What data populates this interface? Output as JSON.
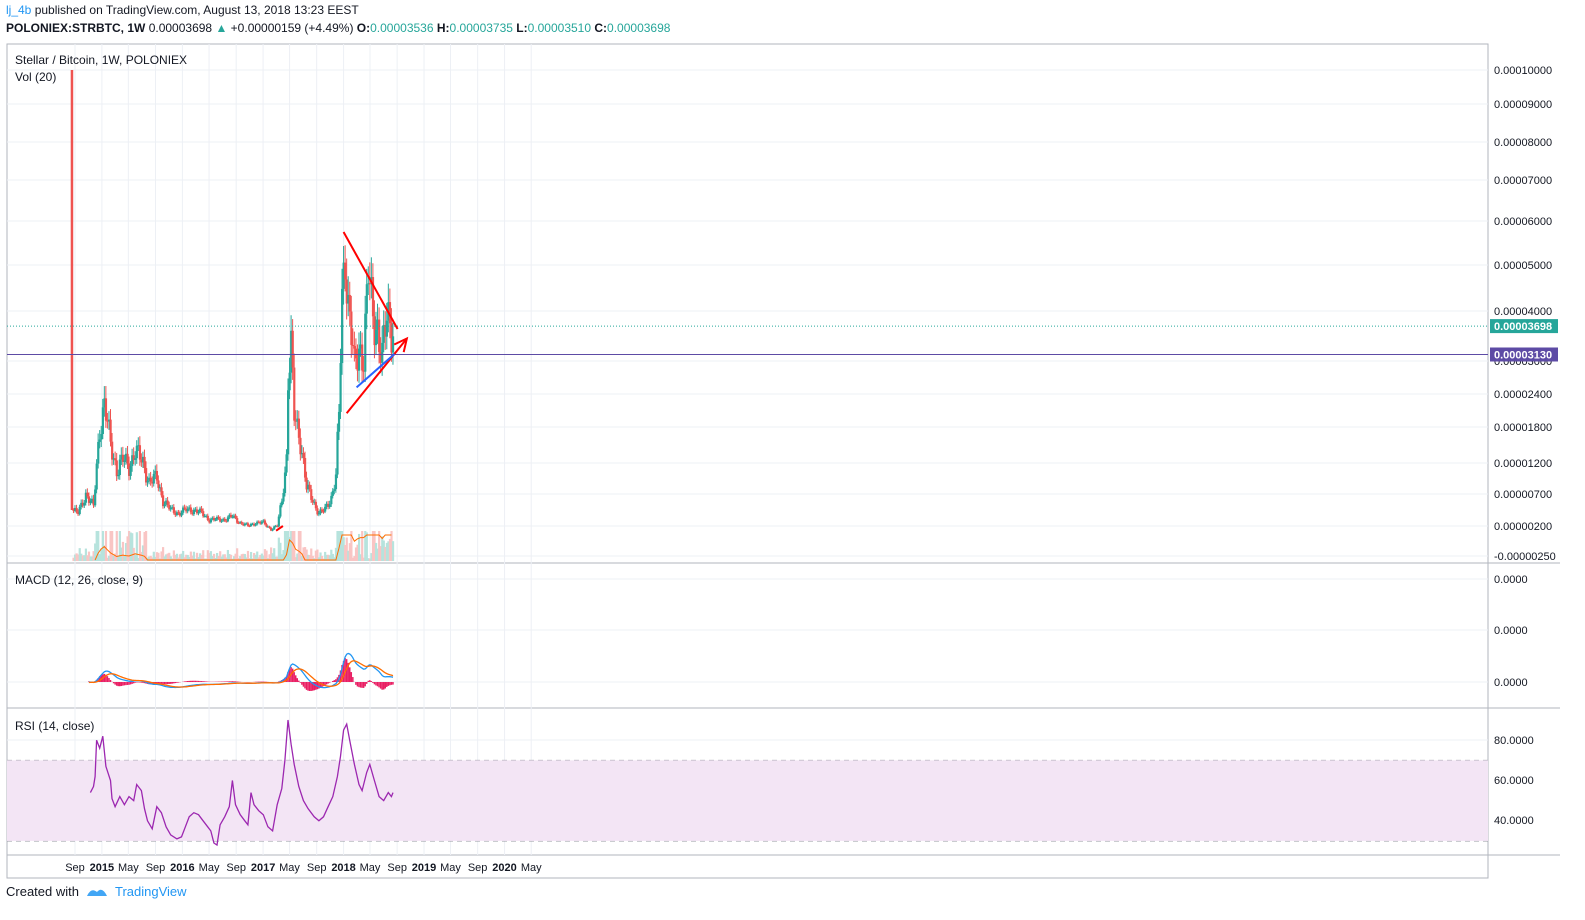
{
  "header": {
    "author": "lj_4b",
    "published": "published on TradingView.com, August 13, 2018 13:23 EEST",
    "symbol": "POLONIEX:STRBTC, 1W",
    "last": "0.00003698",
    "change": "+0.00000159 (+4.49%)",
    "o_label": "O:",
    "o": "0.00003536",
    "h_label": "H:",
    "h": "0.00003735",
    "l_label": "L:",
    "l": "0.00003510",
    "c_label": "C:",
    "c": "0.00003698"
  },
  "footer": {
    "created_with": "Created with",
    "brand": "TradingView"
  },
  "colors": {
    "up": "#26a69a",
    "down": "#ef5350",
    "trendline_red": "#ff0000",
    "trendline_blue": "#2962ff",
    "macd": "#2196f3",
    "signal": "#ff6d00",
    "rsi": "#9c27b0",
    "hline": "#5d4ba5",
    "rsi_band": "#f3e5f5"
  },
  "chart_data": [
    {
      "type": "candlestick",
      "title": "Stellar / Bitcoin, 1W, POLONIEX",
      "volume_label": "Vol (20)",
      "y_ticks": [
        "0.00010000",
        "0.00009000",
        "0.00008000",
        "0.00007000",
        "0.00006000",
        "0.00005000",
        "0.00004000",
        "0.00003000",
        "0.00002400",
        "0.00001800",
        "0.00001200",
        "0.00000700",
        "0.00000200",
        "-0.00000250"
      ],
      "last_price": "0.00003698",
      "hline_price": "0.00003130",
      "x_ticks": [
        "Sep",
        "2015",
        "May",
        "Sep",
        "2016",
        "May",
        "Sep",
        "2017",
        "May",
        "Sep",
        "2018",
        "May",
        "Sep",
        "2019",
        "May",
        "Sep",
        "2020",
        "May"
      ],
      "close_path": [
        [
          "2014-08-18",
          4.5e-06
        ],
        [
          "2014-09-15",
          4e-06
        ],
        [
          "2014-10-20",
          7e-06
        ],
        [
          "2014-11-24",
          5e-06
        ],
        [
          "2014-12-22",
          1.8e-05
        ],
        [
          "2015-01-12",
          2.2e-05
        ],
        [
          "2015-02-09",
          1.5e-05
        ],
        [
          "2015-03-09",
          1.1e-05
        ],
        [
          "2015-04-06",
          1.25e-05
        ],
        [
          "2015-05-04",
          1.15e-05
        ],
        [
          "2015-06-01",
          1.4e-05
        ],
        [
          "2015-07-06",
          1.2e-05
        ],
        [
          "2015-08-03",
          9e-06
        ],
        [
          "2015-09-07",
          9.5e-06
        ],
        [
          "2015-10-05",
          6e-06
        ],
        [
          "2015-11-09",
          4.5e-06
        ],
        [
          "2015-12-14",
          4e-06
        ],
        [
          "2016-01-18",
          4.5e-06
        ],
        [
          "2016-02-22",
          4.5e-06
        ],
        [
          "2016-03-28",
          4e-06
        ],
        [
          "2016-05-02",
          3e-06
        ],
        [
          "2016-06-06",
          3e-06
        ],
        [
          "2016-07-11",
          3e-06
        ],
        [
          "2016-08-15",
          3.5e-06
        ],
        [
          "2016-09-19",
          2.5e-06
        ],
        [
          "2016-10-24",
          2e-06
        ],
        [
          "2016-11-28",
          2.5e-06
        ],
        [
          "2017-01-02",
          2.5e-06
        ],
        [
          "2017-02-06",
          1.5e-06
        ],
        [
          "2017-03-06",
          2e-06
        ],
        [
          "2017-03-27",
          6e-06
        ],
        [
          "2017-04-17",
          1.3e-05
        ],
        [
          "2017-04-24",
          2.7e-05
        ],
        [
          "2017-05-08",
          3.2e-05
        ],
        [
          "2017-05-22",
          2e-05
        ],
        [
          "2017-06-19",
          1.6e-05
        ],
        [
          "2017-07-17",
          8e-06
        ],
        [
          "2017-08-14",
          6e-06
        ],
        [
          "2017-09-11",
          4e-06
        ],
        [
          "2017-10-09",
          4.5e-06
        ],
        [
          "2017-11-06",
          6.5e-06
        ],
        [
          "2017-11-27",
          1e-05
        ],
        [
          "2017-12-11",
          2e-05
        ],
        [
          "2017-12-25",
          4.2e-05
        ],
        [
          "2018-01-08",
          5.3e-05
        ],
        [
          "2018-01-22",
          4.2e-05
        ],
        [
          "2018-02-05",
          3.6e-05
        ],
        [
          "2018-02-19",
          2.8e-05
        ],
        [
          "2018-03-12",
          3.2e-05
        ],
        [
          "2018-04-02",
          3.2e-05
        ],
        [
          "2018-04-23",
          4.8e-05
        ],
        [
          "2018-05-14",
          3.8e-05
        ],
        [
          "2018-06-04",
          3.7e-05
        ],
        [
          "2018-06-25",
          3.1e-05
        ],
        [
          "2018-07-16",
          3.8e-05
        ],
        [
          "2018-08-13",
          3.7e-05
        ]
      ],
      "annotations": [
        {
          "kind": "trendline",
          "color": "red",
          "from": [
            "2018-01-01",
            5.75e-05
          ],
          "to": [
            "2018-09-03",
            3.64e-05
          ]
        },
        {
          "kind": "arrow",
          "color": "red",
          "from": [
            "2018-01-15",
            2.05e-05
          ],
          "to": [
            "2018-10-15",
            3.45e-05
          ]
        },
        {
          "kind": "trendline",
          "color": "blue",
          "from": [
            "2018-03-01",
            2.52e-05
          ],
          "to": [
            "2018-08-20",
            3.14e-05
          ]
        },
        {
          "kind": "trendline",
          "color": "red",
          "from": [
            "2017-03-01",
            1.3e-06
          ],
          "to": [
            "2017-04-01",
            2e-06
          ]
        }
      ]
    },
    {
      "type": "line",
      "title": "MACD (12, 26, close, 9)",
      "y_ticks": [
        "0.0000",
        "0.0000",
        "0.0000"
      ],
      "series": []
    },
    {
      "type": "line",
      "title": "RSI (14, close)",
      "y_ticks": [
        "80.0000",
        "60.0000",
        "40.0000"
      ],
      "band": [
        30,
        70
      ],
      "ylim": [
        26,
        92
      ],
      "series": [
        {
          "values": [
            [
              "2014-11-10",
              54
            ],
            [
              "2014-11-24",
              57
            ],
            [
              "2014-12-01",
              62
            ],
            [
              "2014-12-08",
              80
            ],
            [
              "2014-12-22",
              76
            ],
            [
              "2015-01-05",
              82
            ],
            [
              "2015-01-19",
              67
            ],
            [
              "2015-02-09",
              60
            ],
            [
              "2015-02-16",
              51
            ],
            [
              "2015-03-02",
              47
            ],
            [
              "2015-03-23",
              52
            ],
            [
              "2015-04-13",
              48
            ],
            [
              "2015-05-04",
              52
            ],
            [
              "2015-05-25",
              50
            ],
            [
              "2015-06-08",
              58
            ],
            [
              "2015-06-29",
              55
            ],
            [
              "2015-07-13",
              46
            ],
            [
              "2015-07-27",
              40
            ],
            [
              "2015-08-17",
              36
            ],
            [
              "2015-09-07",
              47
            ],
            [
              "2015-09-28",
              44
            ],
            [
              "2015-10-19",
              37
            ],
            [
              "2015-11-09",
              33
            ],
            [
              "2015-12-07",
              31
            ],
            [
              "2015-12-28",
              32
            ],
            [
              "2016-01-11",
              36
            ],
            [
              "2016-02-01",
              42
            ],
            [
              "2016-02-22",
              44
            ],
            [
              "2016-03-14",
              43
            ],
            [
              "2016-04-04",
              40
            ],
            [
              "2016-04-25",
              37
            ],
            [
              "2016-05-09",
              35
            ],
            [
              "2016-05-23",
              29
            ],
            [
              "2016-06-06",
              28
            ],
            [
              "2016-06-20",
              38
            ],
            [
              "2016-07-11",
              42
            ],
            [
              "2016-08-01",
              47
            ],
            [
              "2016-08-15",
              60
            ],
            [
              "2016-08-29",
              48
            ],
            [
              "2016-09-19",
              43
            ],
            [
              "2016-10-10",
              40
            ],
            [
              "2016-10-24",
              38
            ],
            [
              "2016-11-07",
              54
            ],
            [
              "2016-11-21",
              48
            ],
            [
              "2016-12-12",
              45
            ],
            [
              "2017-01-02",
              43
            ],
            [
              "2017-01-23",
              37
            ],
            [
              "2017-02-13",
              35
            ],
            [
              "2017-03-06",
              48
            ],
            [
              "2017-03-27",
              56
            ],
            [
              "2017-04-10",
              70
            ],
            [
              "2017-04-24",
              90
            ],
            [
              "2017-05-08",
              78
            ],
            [
              "2017-05-22",
              68
            ],
            [
              "2017-06-12",
              57
            ],
            [
              "2017-07-03",
              50
            ],
            [
              "2017-07-24",
              46
            ],
            [
              "2017-08-21",
              42
            ],
            [
              "2017-09-11",
              40
            ],
            [
              "2017-10-02",
              42
            ],
            [
              "2017-10-23",
              47
            ],
            [
              "2017-11-13",
              52
            ],
            [
              "2017-12-04",
              62
            ],
            [
              "2017-12-18",
              72
            ],
            [
              "2018-01-01",
              85
            ],
            [
              "2018-01-15",
              88
            ],
            [
              "2018-01-29",
              80
            ],
            [
              "2018-02-19",
              68
            ],
            [
              "2018-03-12",
              58
            ],
            [
              "2018-03-26",
              55
            ],
            [
              "2018-04-16",
              64
            ],
            [
              "2018-04-30",
              68
            ],
            [
              "2018-05-21",
              60
            ],
            [
              "2018-06-11",
              52
            ],
            [
              "2018-07-02",
              50
            ],
            [
              "2018-07-23",
              54
            ],
            [
              "2018-08-06",
              52
            ],
            [
              "2018-08-13",
              54
            ]
          ]
        }
      ]
    }
  ]
}
